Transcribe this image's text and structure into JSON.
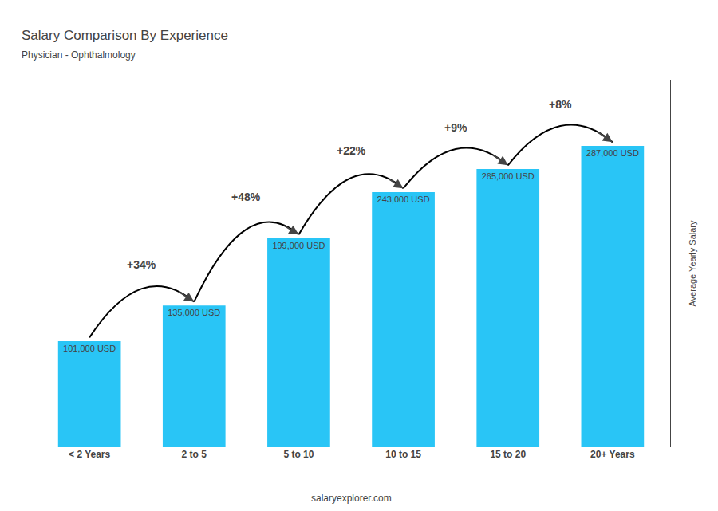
{
  "chart_data": {
    "type": "bar",
    "title": "Salary Comparison By Experience",
    "subtitle": "Physician - Ophthalmology",
    "categories": [
      "< 2 Years",
      "2 to 5",
      "5 to 10",
      "10 to 15",
      "15 to 20",
      "20+ Years"
    ],
    "values": [
      101000,
      135000,
      199000,
      243000,
      265000,
      287000
    ],
    "value_labels": [
      "101,000 USD",
      "135,000 USD",
      "199,000 USD",
      "243,000 USD",
      "265,000 USD",
      "287,000 USD"
    ],
    "data_labels": true,
    "annotations": [
      "+34%",
      "+48%",
      "+22%",
      "+9%",
      "+8%"
    ],
    "ylabel": "Average Yearly Salary",
    "footer": "salaryexplorer.com",
    "color": "#29c5f6",
    "ylim": [
      0,
      350000
    ],
    "yticks": [],
    "grid": false,
    "tick_labels": "x"
  }
}
